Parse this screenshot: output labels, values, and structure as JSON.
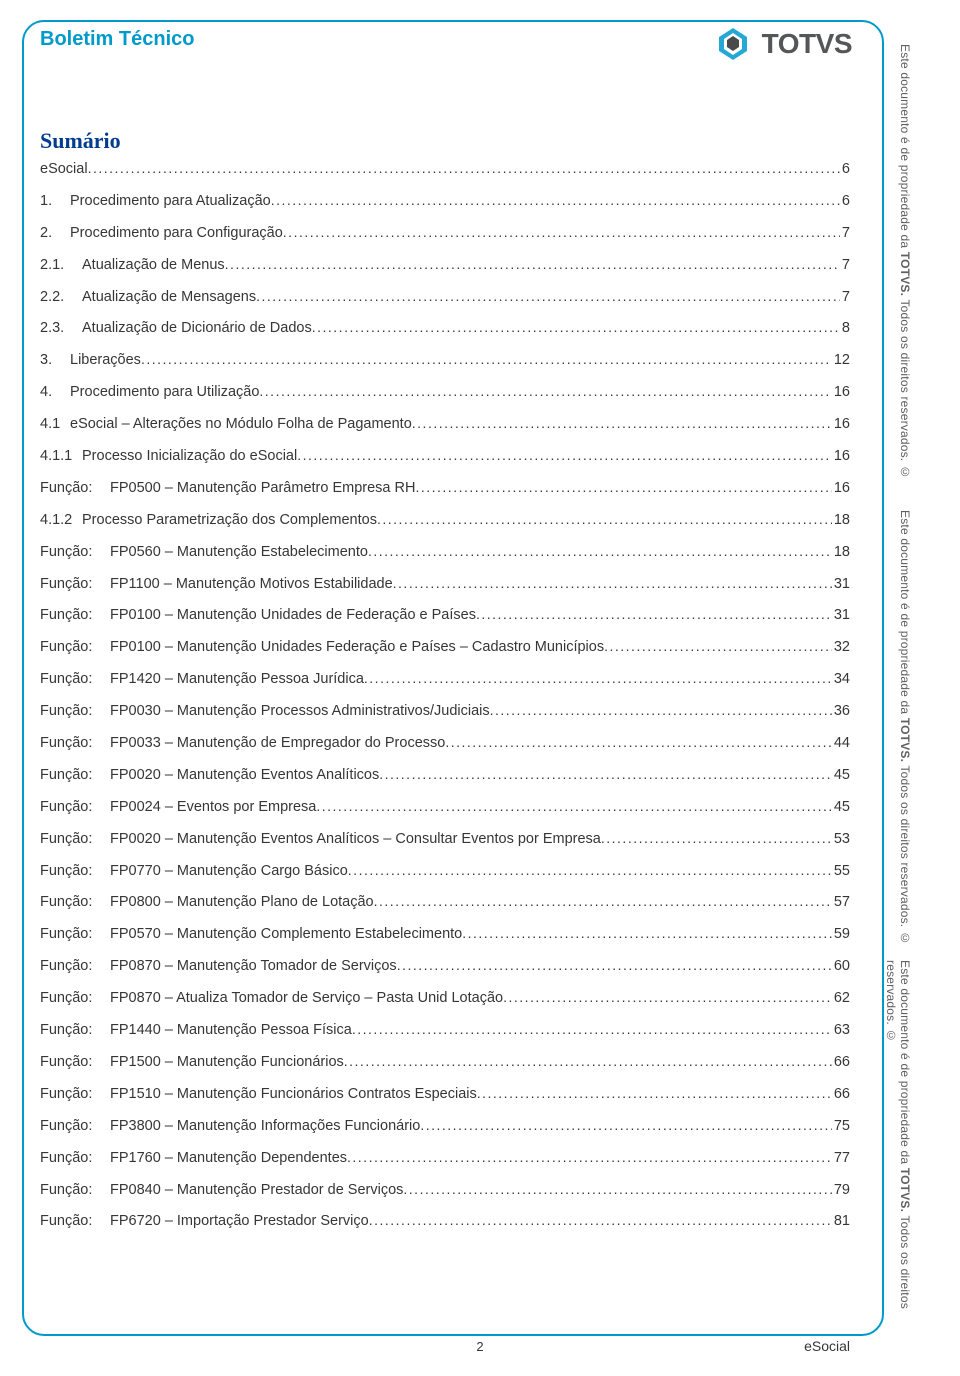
{
  "header": {
    "title": "Boletim Técnico",
    "logo_text": "TOTVS"
  },
  "sumario_title": "Sumário",
  "side_text": {
    "prefix": "Este documento é de propriedade da ",
    "brand": "TOTVS.",
    "suffix": " Todos os direitos reservados. ©"
  },
  "footer": {
    "page_num": "2",
    "right_label": "eSocial"
  },
  "colors": {
    "frame_border": "#0099cc",
    "header_title": "#0099cc",
    "sumario": "#003c8f",
    "text": "#363636",
    "logo_text": "#55565a",
    "side_text": "#606060",
    "background": "#ffffff"
  },
  "toc": [
    {
      "num": "",
      "title": "eSocial",
      "page": "6"
    },
    {
      "num": "1.",
      "title": "Procedimento para Atualização",
      "page": "6"
    },
    {
      "num": "2.",
      "title": "Procedimento para Configuração",
      "page": "7"
    },
    {
      "num": "2.1.",
      "title": "Atualização de Menus",
      "page": "7"
    },
    {
      "num": "2.2.",
      "title": "Atualização de Mensagens",
      "page": "7"
    },
    {
      "num": "2.3.",
      "title": "Atualização de Dicionário de Dados",
      "page": "8"
    },
    {
      "num": "3.",
      "title": "Liberações",
      "page": "12"
    },
    {
      "num": "4.",
      "title": "Procedimento para Utilização",
      "page": "16"
    },
    {
      "num": "4.1",
      "title": "eSocial – Alterações no Módulo Folha de Pagamento",
      "page": "16"
    },
    {
      "num": "4.1.1",
      "title": "Processo Inicialização do eSocial",
      "page": "16"
    },
    {
      "funcao": "Função:",
      "title": "FP0500 – Manutenção Parâmetro Empresa RH",
      "page": "16"
    },
    {
      "num": "4.1.2",
      "title": "Processo Parametrização dos Complementos",
      "page": "18"
    },
    {
      "funcao": "Função:",
      "title": "FP0560 – Manutenção Estabelecimento",
      "page": "18"
    },
    {
      "funcao": "Função:",
      "title": "FP1100 – Manutenção Motivos Estabilidade",
      "page": "31"
    },
    {
      "funcao": "Função:",
      "title": "FP0100 – Manutenção Unidades de Federação e Países",
      "page": "31"
    },
    {
      "funcao": "Função:",
      "title": "FP0100 – Manutenção Unidades Federação e Países – Cadastro Municípios",
      "page": "32"
    },
    {
      "funcao": "Função:",
      "title": "FP1420 – Manutenção Pessoa Jurídica",
      "page": "34"
    },
    {
      "funcao": "Função:",
      "title": "FP0030 – Manutenção Processos Administrativos/Judiciais",
      "page": "36"
    },
    {
      "funcao": "Função:",
      "title": "FP0033 – Manutenção de Empregador do Processo",
      "page": "44"
    },
    {
      "funcao": "Função:",
      "title": "FP0020 – Manutenção Eventos Analíticos",
      "page": "45"
    },
    {
      "funcao": "Função:",
      "title": "FP0024 – Eventos por Empresa",
      "page": "45"
    },
    {
      "funcao": "Função:",
      "title": "FP0020 – Manutenção Eventos Analíticos – Consultar Eventos por Empresa",
      "page": "53"
    },
    {
      "funcao": "Função:",
      "title": "FP0770 – Manutenção Cargo Básico",
      "page": "55"
    },
    {
      "funcao": "Função:",
      "title": "FP0800 – Manutenção Plano de Lotação",
      "page": "57"
    },
    {
      "funcao": "Função:",
      "title": "FP0570 – Manutenção Complemento Estabelecimento",
      "page": "59"
    },
    {
      "funcao": "Função:",
      "title": "FP0870 – Manutenção Tomador de Serviços",
      "page": "60"
    },
    {
      "funcao": "Função:",
      "title": "FP0870 – Atualiza Tomador de Serviço – Pasta Unid Lotação",
      "page": "62"
    },
    {
      "funcao": "Função:",
      "title": "FP1440 – Manutenção Pessoa Física",
      "page": "63"
    },
    {
      "funcao": "Função:",
      "title": "FP1500 – Manutenção Funcionários",
      "page": "66"
    },
    {
      "funcao": "Função:",
      "title": "FP1510 – Manutenção Funcionários Contratos Especiais",
      "page": "66"
    },
    {
      "funcao": "Função:",
      "title": "FP3800 – Manutenção Informações Funcionário",
      "page": "75"
    },
    {
      "funcao": "Função:",
      "title": "FP1760 – Manutenção Dependentes",
      "page": "77"
    },
    {
      "funcao": "Função:",
      "title": "FP0840 – Manutenção Prestador de Serviços",
      "page": "79"
    },
    {
      "funcao": "Função:",
      "title": "FP6720 – Importação Prestador Serviço",
      "page": "81"
    }
  ]
}
